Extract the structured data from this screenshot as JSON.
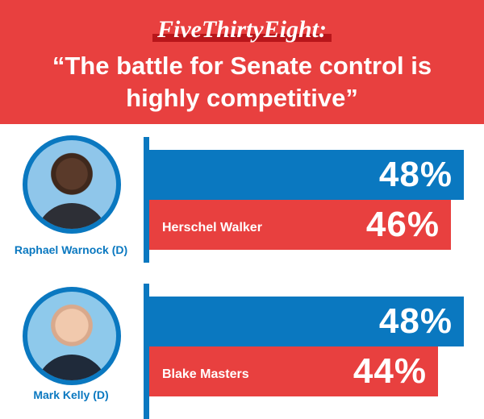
{
  "header": {
    "brand": "FiveThirtyEight:",
    "quote_line1": "“The battle for Senate control is",
    "quote_line2": "highly competitive”"
  },
  "colors": {
    "red": "#e8403f",
    "blue": "#0a78c0",
    "brand_underline": "#b8161a"
  },
  "chart_data": {
    "type": "bar",
    "groups": [
      {
        "candidate": "Raphael Warnock (D)",
        "opponent": "Herschel Walker",
        "candidate_value": 48,
        "opponent_value": 46,
        "candidate_label": "48%",
        "opponent_label": "46%"
      },
      {
        "candidate": "Mark Kelly (D)",
        "opponent": "Blake Masters",
        "candidate_value": 48,
        "opponent_value": 44,
        "candidate_label": "48%",
        "opponent_label": "44%"
      }
    ]
  }
}
